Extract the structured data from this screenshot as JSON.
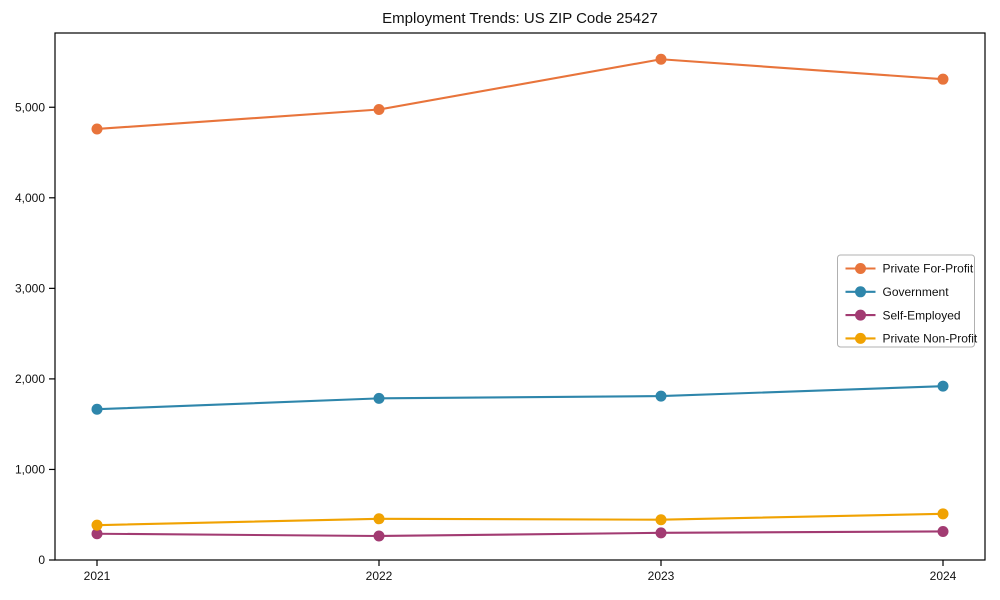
{
  "chart_data": {
    "type": "line",
    "title": "Employment Trends: US ZIP Code 25427",
    "categories": [
      "2021",
      "2022",
      "2023",
      "2024"
    ],
    "series": [
      {
        "name": "Private For-Profit",
        "color": "#E8743B",
        "values": [
          4760,
          4975,
          5530,
          5310
        ]
      },
      {
        "name": "Government",
        "color": "#2E86AB",
        "values": [
          1665,
          1785,
          1810,
          1920
        ]
      },
      {
        "name": "Self-Employed",
        "color": "#A23B72",
        "values": [
          290,
          265,
          300,
          315
        ]
      },
      {
        "name": "Private Non-Profit",
        "color": "#F0A202",
        "values": [
          385,
          455,
          445,
          510
        ]
      }
    ],
    "xlabel": "",
    "ylabel": "",
    "ylim": [
      0,
      5820
    ],
    "yticks": [
      0,
      1000,
      2000,
      3000,
      4000,
      5000
    ],
    "ytick_labels": [
      "0",
      "1,000",
      "2,000",
      "3,000",
      "4,000",
      "5,000"
    ],
    "grid": false,
    "legend_position": "center-right",
    "marker": "circle",
    "axis_color": "#000000",
    "legend_border_color": "#b0b0b0"
  }
}
